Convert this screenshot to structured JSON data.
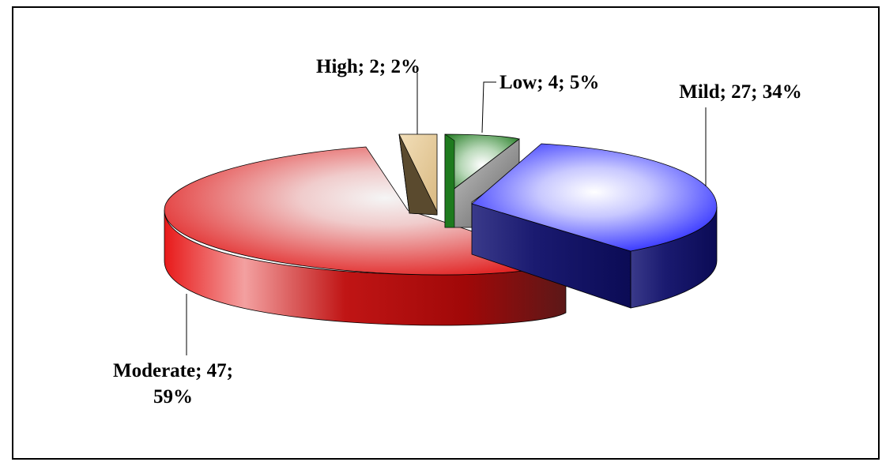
{
  "chart_data": {
    "type": "pie",
    "style": "3d-exploded",
    "title": "",
    "slices": [
      {
        "name": "Mild",
        "value": 27,
        "percent": 34,
        "label": "Mild; 27; 34%",
        "color": "#1a1aff",
        "dark_color": "#0d0d66"
      },
      {
        "name": "Moderate",
        "value": 47,
        "percent": 59,
        "label_lines": [
          "Moderate; 47;",
          "59%"
        ],
        "color": "#e01010",
        "dark_color": "#6a0f0f"
      },
      {
        "name": "High",
        "value": 2,
        "percent": 2,
        "label": "High; 2; 2%",
        "color": "#e8cc99",
        "dark_color": "#5a4a2e"
      },
      {
        "name": "Low",
        "value": 4,
        "percent": 5,
        "label": "Low; 4; 5%",
        "color": "#1e7a1e",
        "dark_color": "#0e4a0e"
      }
    ],
    "legend": "none",
    "label_format": "category; value; percent"
  }
}
